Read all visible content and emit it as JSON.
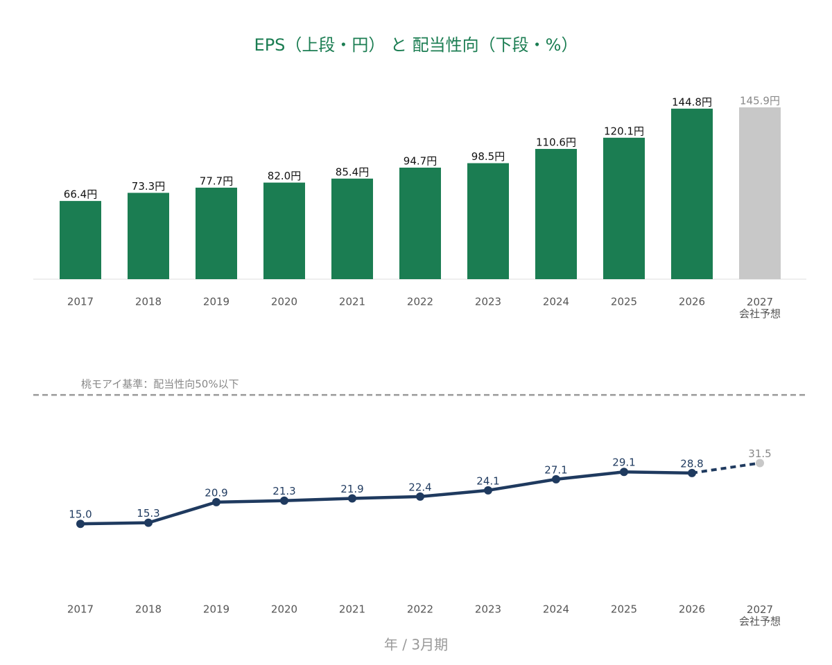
{
  "title": "EPS（上段・円） と 配当性向（下段・%）",
  "x_label": "年 / 3月期",
  "chart_data": [
    {
      "type": "bar",
      "categories": [
        "2017",
        "2018",
        "2019",
        "2020",
        "2021",
        "2022",
        "2023",
        "2024",
        "2025",
        "2026",
        "2027\n会社予想"
      ],
      "values": [
        66.4,
        73.3,
        77.7,
        82.0,
        85.4,
        94.7,
        98.5,
        110.6,
        120.1,
        144.8,
        145.9
      ],
      "value_labels": [
        "66.4円",
        "73.3円",
        "77.7円",
        "82.0円",
        "85.4円",
        "94.7円",
        "98.5円",
        "110.6円",
        "120.1円",
        "144.8円",
        "145.9円"
      ],
      "colors": [
        "#1b7d52",
        "#1b7d52",
        "#1b7d52",
        "#1b7d52",
        "#1b7d52",
        "#1b7d52",
        "#1b7d52",
        "#1b7d52",
        "#1b7d52",
        "#1b7d52",
        "#c8c8c8"
      ],
      "ylim": [
        0,
        160
      ]
    },
    {
      "type": "line",
      "categories": [
        "2017",
        "2018",
        "2019",
        "2020",
        "2021",
        "2022",
        "2023",
        "2024",
        "2025",
        "2026",
        "2027\n会社予想"
      ],
      "values": [
        15.0,
        15.3,
        20.9,
        21.3,
        21.9,
        22.4,
        24.1,
        27.1,
        29.1,
        28.8,
        31.5
      ],
      "value_labels": [
        "15.0",
        "15.3",
        "20.9",
        "21.3",
        "21.9",
        "22.4",
        "24.1",
        "27.1",
        "29.1",
        "28.8",
        "31.5"
      ],
      "color": "#1f3a5f",
      "colors": [
        "#1f3a5f",
        "#1f3a5f",
        "#1f3a5f",
        "#1f3a5f",
        "#1f3a5f",
        "#1f3a5f",
        "#1f3a5f",
        "#1f3a5f",
        "#1f3a5f",
        "#1f3a5f",
        "#c8c8c8"
      ],
      "ylim": [
        0,
        55
      ],
      "reference": {
        "value": 50,
        "label": "桃モアイ基準：配当性向50%以下"
      }
    }
  ]
}
